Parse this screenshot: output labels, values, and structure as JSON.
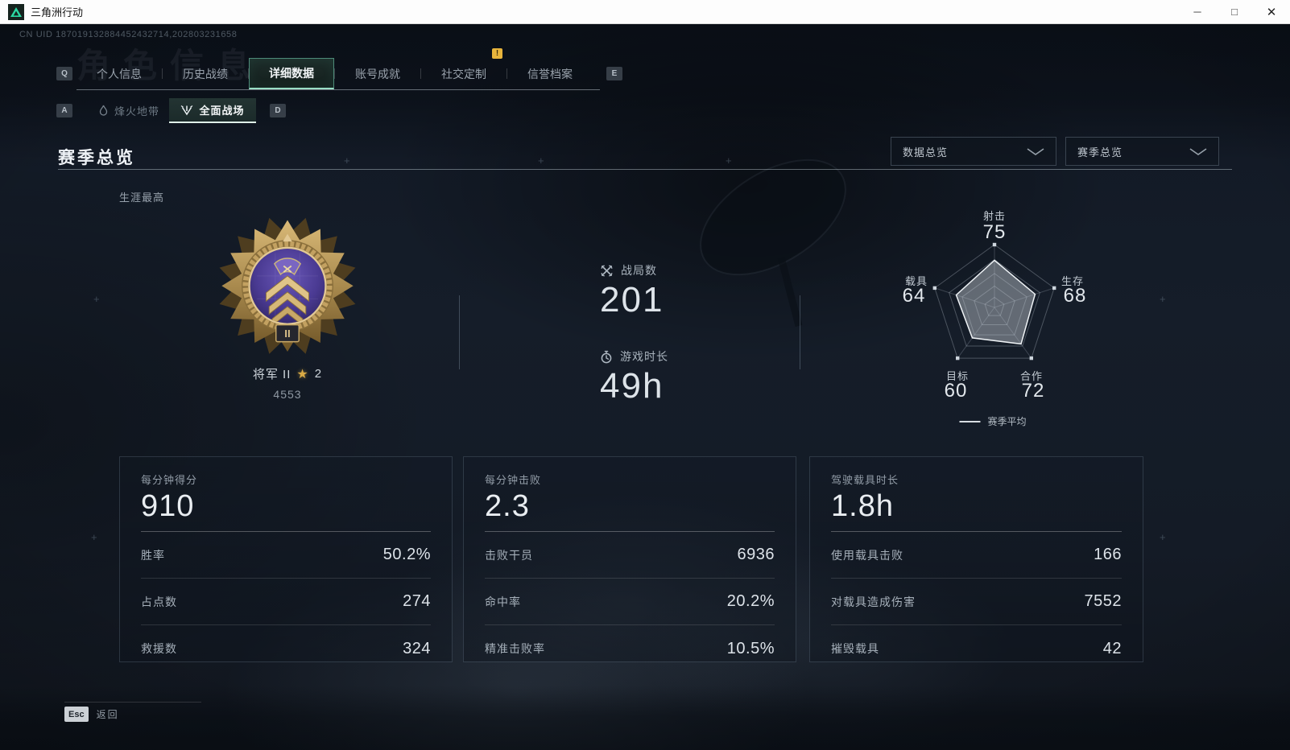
{
  "window": {
    "title": "三角洲行动"
  },
  "icons": {
    "minimize": "─",
    "maximize": "□",
    "close": "✕",
    "star": "★"
  },
  "uid": "CN UID 187019132884452432714,202803231658",
  "ghost_title": "角色信息",
  "nav": {
    "left_key": "Q",
    "right_key": "E",
    "tabs": [
      {
        "label": "个人信息",
        "active": false
      },
      {
        "label": "历史战绩",
        "active": false
      },
      {
        "label": "详细数据",
        "active": true
      },
      {
        "label": "账号成就",
        "active": false
      },
      {
        "label": "社交定制",
        "active": false,
        "badge": "!"
      },
      {
        "label": "信誉档案",
        "active": false
      }
    ]
  },
  "subnav": {
    "left_key": "A",
    "right_key": "D",
    "tabs": [
      {
        "label": "烽火地带",
        "active": false
      },
      {
        "label": "全面战场",
        "active": true
      }
    ]
  },
  "page": {
    "title": "赛季总览"
  },
  "filters": [
    {
      "value": "数据总览"
    },
    {
      "value": "赛季总览"
    }
  ],
  "career": {
    "section_label": "生涯最高",
    "rank_name": "将军 II",
    "star_count": "2",
    "rank_score": "4553",
    "medal_tier": "II"
  },
  "summary_stats": [
    {
      "icon": "crossed-swords",
      "label": "战局数",
      "value": "201"
    },
    {
      "icon": "clock",
      "label": "游戏时长",
      "value": "49h"
    }
  ],
  "chart_data": {
    "type": "radar",
    "categories": [
      "射击",
      "生存",
      "合作",
      "目标",
      "载具"
    ],
    "series": [
      {
        "name": "赛季平均",
        "values": [
          75,
          68,
          72,
          60,
          64
        ]
      }
    ],
    "range": [
      0,
      100
    ],
    "grid_levels": 5,
    "legend": {
      "position": "bottom",
      "entries": [
        "赛季平均"
      ]
    }
  },
  "cards": [
    {
      "title": "每分钟得分",
      "value": "910",
      "rows": [
        {
          "label": "胜率",
          "value": "50.2%"
        },
        {
          "label": "占点数",
          "value": "274"
        },
        {
          "label": "救援数",
          "value": "324"
        }
      ]
    },
    {
      "title": "每分钟击败",
      "value": "2.3",
      "rows": [
        {
          "label": "击败干员",
          "value": "6936"
        },
        {
          "label": "命中率",
          "value": "20.2%"
        },
        {
          "label": "精准击败率",
          "value": "10.5%"
        }
      ]
    },
    {
      "title": "驾驶载具时长",
      "value": "1.8h",
      "rows": [
        {
          "label": "使用载具击败",
          "value": "166"
        },
        {
          "label": "对载具造成伤害",
          "value": "7552"
        },
        {
          "label": "摧毁载具",
          "value": "42"
        }
      ]
    }
  ],
  "footer": {
    "key": "Esc",
    "label": "返回"
  }
}
